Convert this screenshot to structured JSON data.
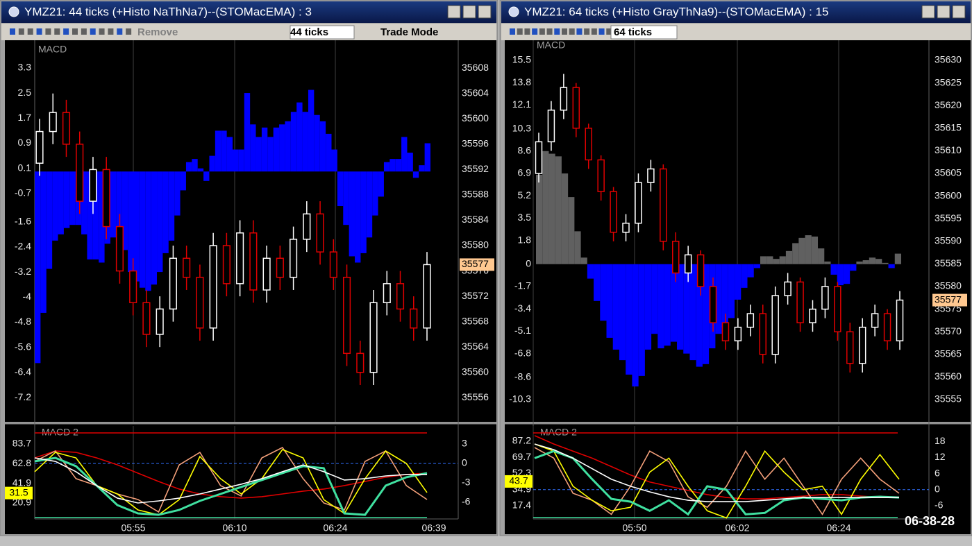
{
  "windows": [
    {
      "title": "YMZ21: 44 ticks (+Histo NaThNa7)--(STOMacEMA) : 3",
      "toolbar": [
        "Remove",
        "44 ticks",
        "Trade Mode"
      ],
      "main": {
        "label": "MACD",
        "ylim": [
          -7.97,
          4.18
        ],
        "yticks": [
          3.3,
          2.5,
          1.7,
          0.9,
          0.1,
          -0.7,
          -1.6,
          -2.4,
          -3.2,
          -4.0,
          -4.8,
          -5.6,
          -6.4,
          -7.2
        ],
        "y2lim": [
          35552.2,
          35612.4
        ],
        "y2ticks": [
          35608,
          35604,
          35600,
          35596,
          35592,
          35588,
          35584,
          35580,
          35576,
          35572,
          35568,
          35564,
          35560,
          35556
        ],
        "price_marker": 35577,
        "histogram": {
          "positive_color": "#0000ff",
          "negative_color": "#0000ff",
          "values": [
            -6.1,
            -4.5,
            -3.1,
            -2.2,
            -2.0,
            -1.8,
            -1.7,
            -1.7,
            -2.0,
            -2.8,
            -2.8,
            -2.9,
            -2.3,
            -2.1,
            -2.2,
            -2.5,
            -3.2,
            -3.5,
            -3.7,
            -3.8,
            -3.6,
            -3.2,
            -2.6,
            -2.2,
            -1.4,
            -0.6,
            0.3,
            0.4,
            0.1,
            -0.3,
            0.5,
            1.3,
            1.3,
            1.1,
            0.7,
            0.7,
            2.5,
            1.5,
            1.1,
            1.4,
            1.1,
            1.4,
            1.5,
            1.6,
            1.9,
            2.2,
            1.9,
            2.6,
            1.8,
            1.6,
            1.2,
            0.7,
            -1.1,
            -1.7,
            -2.7,
            -2.9,
            -2.6,
            -2.1,
            -1.4,
            -0.8,
            0.3,
            0.4,
            0.4,
            1.1,
            0.6,
            -0.2,
            0.2,
            0.9
          ]
        },
        "candles": {
          "up_color": "#ffffff",
          "down_color": "#e00000",
          "open": [
            35593,
            35598,
            35601,
            35596,
            35587,
            35592,
            35583,
            35576,
            35571,
            35566,
            35570,
            35578,
            35575,
            35567,
            35580,
            35574,
            35582,
            35573,
            35578,
            35575,
            35581,
            35585,
            35579,
            35575,
            35563,
            35560,
            35571,
            35574,
            35570,
            35567
          ],
          "high": [
            35600,
            35604,
            35603,
            35598,
            35594,
            35594,
            35585,
            35578,
            35573,
            35572,
            35580,
            35580,
            35577,
            35582,
            35582,
            35584,
            35584,
            35580,
            35580,
            35583,
            35587,
            35587,
            35581,
            35577,
            35565,
            35573,
            35576,
            35576,
            35572,
            35579
          ],
          "low": [
            35591,
            35596,
            35594,
            35585,
            35585,
            35581,
            35574,
            35569,
            35564,
            35564,
            35568,
            35573,
            35565,
            35565,
            35572,
            35572,
            35571,
            35571,
            35573,
            35573,
            35579,
            35577,
            35573,
            35561,
            35558,
            35558,
            35569,
            35568,
            35565,
            35565
          ],
          "close": [
            35598,
            35601,
            35596,
            35587,
            35592,
            35583,
            35576,
            35571,
            35566,
            35570,
            35578,
            35575,
            35567,
            35580,
            35574,
            35582,
            35573,
            35578,
            35575,
            35581,
            35585,
            35579,
            35575,
            35563,
            35560,
            35571,
            35574,
            35570,
            35567,
            35577
          ]
        }
      },
      "lower": {
        "label": "MACD 2",
        "ylim": [
          3.9,
          102.9
        ],
        "yticks": [
          83.7,
          62.8,
          41.9,
          20.9
        ],
        "y2lim": [
          -8.57,
          5.79
        ],
        "y2ticks": [
          3.0,
          0.0,
          -3.0,
          -6.0
        ],
        "marker": 31.5,
        "levels": [
          95.5,
          5.4
        ],
        "level_colors": [
          "#e00000",
          "#40e0a0"
        ],
        "zero_line": 0.0,
        "lines": [
          {
            "color": "#e00000",
            "values": [
              68.9,
              76.3,
              74.8,
              68.9,
              61.5,
              52.7,
              43.8,
              35.7,
              30.5,
              27.6,
              26.1,
              27.6,
              30.5,
              33.5,
              35.7,
              39.4,
              43.8,
              48.3,
              51.2,
              52.7
            ]
          },
          {
            "color": "#f4a07a",
            "values": [
              65.2,
              76.3,
              46.8,
              39.4,
              30.5,
              24.6,
              11.3,
              61.5,
              74.8,
              39.4,
              28.3,
              68.9,
              80.0,
              46.8,
              20.9,
              13.5,
              65.2,
              76.3,
              39.4,
              24.6
            ]
          },
          {
            "color": "#ffff00",
            "values": [
              54.2,
              74.8,
              68.9,
              39.4,
              30.5,
              13.5,
              8.2,
              24.5,
              70.4,
              46.8,
              30.5,
              46.8,
              77.8,
              68.9,
              24.5,
              9.7,
              46.8,
              76.3,
              63.0,
              32.0
            ]
          },
          {
            "color": "#40e0a0",
            "values": [
              65.2,
              68.9,
              60.1,
              39.4,
              18.7,
              9.8,
              8.3,
              13.5,
              23.1,
              30.5,
              37.9,
              45.3,
              52.7,
              60.1,
              57.9,
              9.8,
              8.3,
              39.4,
              48.3,
              52.7
            ]
          },
          {
            "color": "#ffffff",
            "values": [
              68.9,
              65.2,
              54.2,
              39.4,
              26.1,
              20.9,
              23.1,
              26.1,
              30.5,
              35.7,
              40.9,
              46.8,
              54.2,
              61.5,
              54.2,
              45.3,
              46.8,
              49.7,
              51.2,
              51.2
            ]
          }
        ]
      },
      "time_labels": [
        "05:55",
        "06:10",
        "06:24",
        "06:39"
      ]
    },
    {
      "title": "YMZ21: 64 ticks (+Histo GrayThNa9)--(STOMacEMA) : 15",
      "toolbar": [
        "64 ticks"
      ],
      "main": {
        "label": "MACD",
        "ylim": [
          -11.99,
          17.03
        ],
        "yticks": [
          15.5,
          13.8,
          12.1,
          10.3,
          8.6,
          6.9,
          5.2,
          3.5,
          1.8,
          0.0,
          -1.7,
          -3.4,
          -5.1,
          -6.8,
          -8.6,
          -10.3
        ],
        "y2lim": [
          35550.09,
          35634.45
        ],
        "y2ticks": [
          35630,
          35625,
          35620,
          35615,
          35610,
          35605,
          35600,
          35595,
          35590,
          35585,
          35580,
          35575,
          35570,
          35565,
          35560,
          35555
        ],
        "price_marker": 35577,
        "histogram": {
          "positive_color": "#606060",
          "negative_color": "#0000ff",
          "values": [
            6.8,
            8.6,
            8.4,
            8.2,
            6.9,
            5.1,
            2.5,
            0.5,
            -1.1,
            -2.8,
            -4.3,
            -5.6,
            -6.5,
            -7.3,
            -8.4,
            -9.3,
            -8.5,
            -6.5,
            -5.3,
            -6.4,
            -6.2,
            -5.9,
            -6.5,
            -6.8,
            -7.3,
            -7.8,
            -7.6,
            -6.4,
            -5.3,
            -4.8,
            -4.1,
            -2.7,
            -1.8,
            -1.0,
            -0.3,
            0.6,
            0.6,
            0.4,
            0.6,
            1.0,
            1.6,
            2.0,
            2.2,
            2.1,
            1.2,
            0.2,
            -0.8,
            -1.6,
            -1.5,
            -0.5,
            0.2,
            0.3,
            0.5,
            0.4,
            0.1,
            -0.3,
            0.8
          ]
        },
        "candles": {
          "up_color": "#ffffff",
          "down_color": "#e00000",
          "open": [
            35605,
            35612,
            35619,
            35624,
            35615,
            35608,
            35601,
            35592,
            35594,
            35603,
            35606,
            35590,
            35583,
            35587,
            35580,
            35572,
            35568,
            35571,
            35574,
            35565,
            35578,
            35581,
            35572,
            35575,
            35580,
            35570,
            35563,
            35571,
            35574,
            35568
          ],
          "high": [
            35614,
            35621,
            35627,
            35625,
            35616,
            35609,
            35602,
            35596,
            35605,
            35608,
            35607,
            35592,
            35589,
            35588,
            35582,
            35574,
            35573,
            35576,
            35576,
            35580,
            35583,
            35582,
            35577,
            35582,
            35581,
            35572,
            35573,
            35576,
            35575,
            35579
          ],
          "low": [
            35603,
            35610,
            35617,
            35613,
            35606,
            35599,
            35590,
            35590,
            35592,
            35601,
            35588,
            35581,
            35581,
            35578,
            35570,
            35566,
            35566,
            35569,
            35563,
            35563,
            35576,
            35570,
            35570,
            35573,
            35568,
            35561,
            35561,
            35569,
            35566,
            35566
          ],
          "close": [
            35612,
            35619,
            35624,
            35615,
            35608,
            35601,
            35592,
            35594,
            35603,
            35606,
            35590,
            35583,
            35587,
            35580,
            35572,
            35568,
            35571,
            35574,
            35565,
            35578,
            35581,
            35572,
            35575,
            35580,
            35570,
            35563,
            35571,
            35574,
            35568,
            35577
          ]
        }
      },
      "lower": {
        "label": "MACD 2",
        "ylim": [
          3.1,
          103.7
        ],
        "yticks": [
          87.2,
          69.7,
          52.3,
          34.9,
          17.4
        ],
        "y2lim": [
          -10.9,
          23.7
        ],
        "y2ticks": [
          18.0,
          12.0,
          6.0,
          0.0,
          -6.0
        ],
        "marker": 43.7,
        "levels": [
          96.2,
          4.6
        ],
        "level_colors": [
          "#e00000",
          "#40e0a0"
        ],
        "zero_line": 0.0,
        "lines": [
          {
            "color": "#e00000",
            "values": [
              93.3,
              84.2,
              76.5,
              68.9,
              59.8,
              50.7,
              43.1,
              38.5,
              33.9,
              29.4,
              26.3,
              24.8,
              24.8,
              26.3,
              27.8,
              29.4,
              29.4,
              27.8,
              26.3,
              26.3
            ]
          },
          {
            "color": "#f4a07a",
            "values": [
              80.4,
              68.9,
              30.9,
              23.3,
              8.1,
              38.5,
              76.5,
              65.1,
              27.1,
              15.7,
              38.5,
              76.5,
              46.1,
              68.9,
              38.5,
              8.1,
              46.1,
              68.9,
              46.1,
              30.9
            ]
          },
          {
            "color": "#ffff00",
            "values": [
              84.2,
              76.5,
              38.5,
              23.3,
              11.9,
              15.7,
              53.7,
              68.9,
              38.5,
              11.9,
              4.2,
              38.5,
              76.5,
              53.7,
              34.7,
              38.5,
              8.1,
              46.1,
              72.7,
              46.1
            ]
          },
          {
            "color": "#40e0a0",
            "values": [
              68.9,
              76.5,
              68.9,
              46.1,
              24.8,
              21.8,
              11.9,
              23.3,
              8.1,
              38.5,
              34.7,
              8.1,
              9.6,
              23.3,
              26.3,
              24.8,
              23.3,
              26.3,
              27.1,
              26.3
            ]
          },
          {
            "color": "#ffffff",
            "values": [
              84.2,
              78.1,
              68.9,
              57.5,
              46.1,
              38.5,
              32.4,
              27.1,
              23.3,
              21.8,
              21.8,
              21.8,
              23.3,
              24.8,
              26.3,
              26.3,
              26.3,
              26.3,
              26.3,
              26.3
            ]
          }
        ]
      },
      "time_labels": [
        "05:50",
        "06:02",
        "06:24"
      ]
    }
  ],
  "clock": "06-38-28"
}
